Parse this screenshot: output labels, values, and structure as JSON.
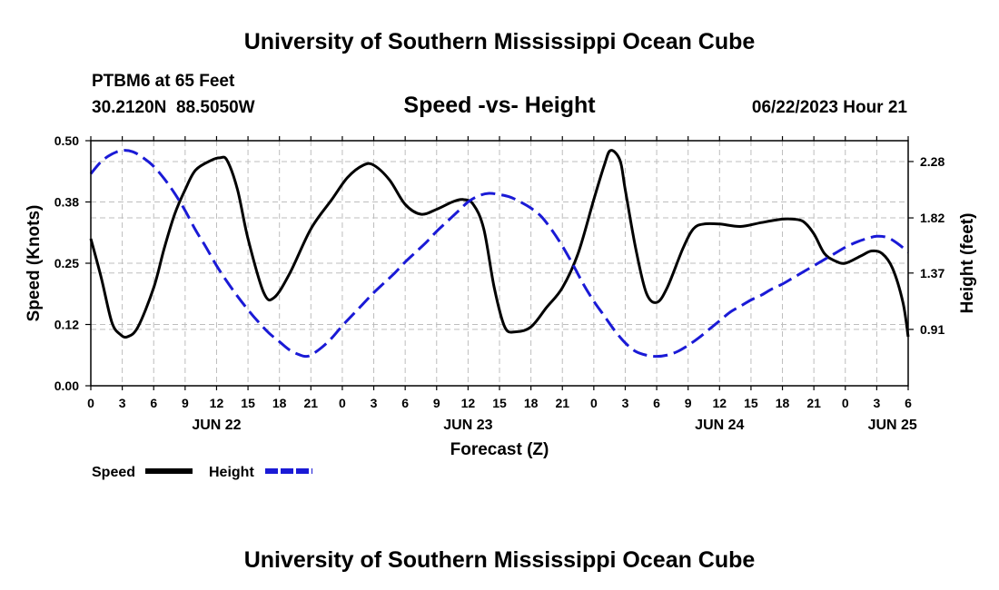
{
  "header": {
    "title": "University of Southern Mississippi Ocean Cube",
    "station": "PTBM6 at 65 Feet",
    "coords": "30.2120N  88.5050W",
    "date": "06/22/2023 Hour 21"
  },
  "footer": {
    "title": "University of Southern Mississippi Ocean Cube"
  },
  "chart_data": {
    "type": "line",
    "title": "Speed -vs- Height",
    "xlabel": "Forecast (Z)",
    "ylabel_left": "Speed (Knots)",
    "ylabel_right": "Height (feet)",
    "x_range_hours": [
      0,
      78
    ],
    "left_ylim": [
      0,
      0.5
    ],
    "left_ticks": [
      "0.00",
      "0.12",
      "0.25",
      "0.38",
      "0.50"
    ],
    "left_tick_values": [
      0,
      0.125,
      0.25,
      0.375,
      0.5
    ],
    "right_ylim": [
      0.45,
      2.45
    ],
    "right_ticks": [
      "0.91",
      "1.37",
      "1.82",
      "2.28"
    ],
    "right_tick_values": [
      0.91,
      1.37,
      1.82,
      2.28
    ],
    "x_tick_labels": [
      "0",
      "3",
      "6",
      "9",
      "12",
      "15",
      "18",
      "21",
      "0",
      "3",
      "6",
      "9",
      "12",
      "15",
      "18",
      "21",
      "0",
      "3",
      "6",
      "9",
      "12",
      "15",
      "18",
      "21",
      "0",
      "3",
      "6"
    ],
    "x_tick_hours": [
      0,
      3,
      6,
      9,
      12,
      15,
      18,
      21,
      24,
      27,
      30,
      33,
      36,
      39,
      42,
      45,
      48,
      51,
      54,
      57,
      60,
      63,
      66,
      69,
      72,
      75,
      78
    ],
    "date_labels": [
      {
        "label": "JUN 22",
        "hour": 12
      },
      {
        "label": "JUN 23",
        "hour": 36
      },
      {
        "label": "JUN 24",
        "hour": 60
      },
      {
        "label": "JUN 25",
        "hour": 76.5
      }
    ],
    "legend": {
      "speed_label": "Speed",
      "height_label": "Height"
    },
    "series": [
      {
        "name": "Speed",
        "color": "#000000",
        "axis": "left",
        "style": "solid",
        "points": [
          [
            0,
            0.3
          ],
          [
            1,
            0.22
          ],
          [
            2,
            0.13
          ],
          [
            2.8,
            0.105
          ],
          [
            3.5,
            0.1
          ],
          [
            4.5,
            0.12
          ],
          [
            6,
            0.2
          ],
          [
            7,
            0.28
          ],
          [
            8,
            0.35
          ],
          [
            9,
            0.4
          ],
          [
            10,
            0.44
          ],
          [
            11.5,
            0.46
          ],
          [
            12.3,
            0.465
          ],
          [
            13,
            0.46
          ],
          [
            14,
            0.4
          ],
          [
            15,
            0.3
          ],
          [
            16.5,
            0.19
          ],
          [
            17.5,
            0.18
          ],
          [
            19,
            0.23
          ],
          [
            21,
            0.32
          ],
          [
            23,
            0.38
          ],
          [
            24.5,
            0.425
          ],
          [
            26,
            0.45
          ],
          [
            27,
            0.45
          ],
          [
            28.5,
            0.42
          ],
          [
            30,
            0.37
          ],
          [
            31.5,
            0.35
          ],
          [
            33,
            0.36
          ],
          [
            34.5,
            0.375
          ],
          [
            35.5,
            0.38
          ],
          [
            36.5,
            0.37
          ],
          [
            37.5,
            0.32
          ],
          [
            38.5,
            0.2
          ],
          [
            39.5,
            0.12
          ],
          [
            40.5,
            0.11
          ],
          [
            42,
            0.12
          ],
          [
            43.5,
            0.16
          ],
          [
            45,
            0.2
          ],
          [
            46.5,
            0.27
          ],
          [
            48,
            0.38
          ],
          [
            49,
            0.45
          ],
          [
            49.6,
            0.48
          ],
          [
            50.5,
            0.46
          ],
          [
            51,
            0.4
          ],
          [
            52,
            0.28
          ],
          [
            53,
            0.19
          ],
          [
            54,
            0.17
          ],
          [
            55,
            0.2
          ],
          [
            56.5,
            0.28
          ],
          [
            57.5,
            0.32
          ],
          [
            58.5,
            0.33
          ],
          [
            60,
            0.33
          ],
          [
            62,
            0.325
          ],
          [
            64,
            0.333
          ],
          [
            66,
            0.34
          ],
          [
            67,
            0.34
          ],
          [
            68,
            0.335
          ],
          [
            69,
            0.31
          ],
          [
            70,
            0.27
          ],
          [
            71,
            0.255
          ],
          [
            72,
            0.25
          ],
          [
            73.5,
            0.265
          ],
          [
            74.5,
            0.275
          ],
          [
            75.5,
            0.27
          ],
          [
            76.5,
            0.24
          ],
          [
            77.5,
            0.17
          ],
          [
            78,
            0.1
          ]
        ]
      },
      {
        "name": "Height",
        "color": "#1a1ad6",
        "axis": "right",
        "style": "dashed",
        "points": [
          [
            0,
            2.18
          ],
          [
            1,
            2.28
          ],
          [
            2,
            2.34
          ],
          [
            3,
            2.37
          ],
          [
            4,
            2.36
          ],
          [
            5,
            2.31
          ],
          [
            6,
            2.24
          ],
          [
            7,
            2.14
          ],
          [
            8,
            2.02
          ],
          [
            9,
            1.88
          ],
          [
            10,
            1.72
          ],
          [
            11,
            1.58
          ],
          [
            12,
            1.43
          ],
          [
            13,
            1.3
          ],
          [
            14,
            1.18
          ],
          [
            15,
            1.07
          ],
          [
            16,
            0.97
          ],
          [
            17,
            0.88
          ],
          [
            18,
            0.81
          ],
          [
            19,
            0.74
          ],
          [
            20,
            0.7
          ],
          [
            20.5,
            0.69
          ],
          [
            21,
            0.7
          ],
          [
            22,
            0.76
          ],
          [
            23,
            0.84
          ],
          [
            24,
            0.94
          ],
          [
            25,
            1.03
          ],
          [
            26,
            1.12
          ],
          [
            27,
            1.21
          ],
          [
            28,
            1.29
          ],
          [
            29,
            1.37
          ],
          [
            30,
            1.46
          ],
          [
            31,
            1.54
          ],
          [
            32,
            1.62
          ],
          [
            33,
            1.71
          ],
          [
            34,
            1.79
          ],
          [
            35,
            1.87
          ],
          [
            36,
            1.95
          ],
          [
            37,
            2.0
          ],
          [
            38,
            2.02
          ],
          [
            39,
            2.01
          ],
          [
            40,
            1.99
          ],
          [
            41,
            1.95
          ],
          [
            42,
            1.9
          ],
          [
            43,
            1.83
          ],
          [
            44,
            1.72
          ],
          [
            45,
            1.59
          ],
          [
            46,
            1.44
          ],
          [
            47,
            1.28
          ],
          [
            48,
            1.14
          ],
          [
            49,
            1.02
          ],
          [
            50,
            0.9
          ],
          [
            51,
            0.8
          ],
          [
            52,
            0.73
          ],
          [
            53,
            0.7
          ],
          [
            54,
            0.69
          ],
          [
            55,
            0.7
          ],
          [
            56,
            0.73
          ],
          [
            57,
            0.78
          ],
          [
            58,
            0.84
          ],
          [
            59,
            0.91
          ],
          [
            60,
            0.98
          ],
          [
            61,
            1.05
          ],
          [
            62,
            1.1
          ],
          [
            63,
            1.15
          ],
          [
            64,
            1.19
          ],
          [
            65,
            1.24
          ],
          [
            66,
            1.28
          ],
          [
            67,
            1.33
          ],
          [
            68,
            1.38
          ],
          [
            69,
            1.43
          ],
          [
            70,
            1.48
          ],
          [
            71,
            1.53
          ],
          [
            72,
            1.58
          ],
          [
            73,
            1.62
          ],
          [
            74,
            1.65
          ],
          [
            75,
            1.67
          ],
          [
            76,
            1.66
          ],
          [
            77,
            1.61
          ],
          [
            78,
            1.54
          ]
        ]
      }
    ]
  }
}
